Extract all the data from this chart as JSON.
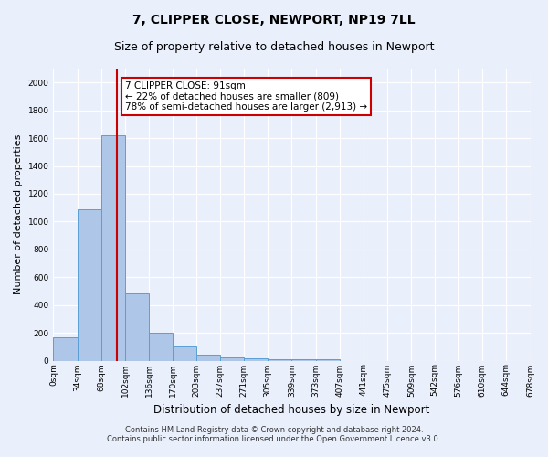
{
  "title": "7, CLIPPER CLOSE, NEWPORT, NP19 7LL",
  "subtitle": "Size of property relative to detached houses in Newport",
  "xlabel": "Distribution of detached houses by size in Newport",
  "ylabel": "Number of detached properties",
  "bin_edges": [
    0,
    34,
    68,
    102,
    136,
    170,
    203,
    237,
    271,
    305,
    339,
    373,
    407,
    441,
    475,
    509,
    542,
    576,
    610,
    644,
    678
  ],
  "bar_heights": [
    165,
    1090,
    1620,
    480,
    200,
    100,
    40,
    25,
    15,
    10,
    10,
    10,
    0,
    0,
    0,
    0,
    0,
    0,
    0,
    0
  ],
  "bar_color": "#aec6e8",
  "bar_edge_color": "#5a9fd4",
  "property_line_x": 91,
  "property_line_color": "#cc0000",
  "annotation_text": "7 CLIPPER CLOSE: 91sqm\n← 22% of detached houses are smaller (809)\n78% of semi-detached houses are larger (2,913) →",
  "annotation_box_color": "#ffffff",
  "annotation_box_edge": "#cc0000",
  "ylim": [
    0,
    2100
  ],
  "yticks": [
    0,
    200,
    400,
    600,
    800,
    1000,
    1200,
    1400,
    1600,
    1800,
    2000
  ],
  "footnote1": "Contains HM Land Registry data © Crown copyright and database right 2024.",
  "footnote2": "Contains public sector information licensed under the Open Government Licence v3.0.",
  "bg_color": "#eaf0fb",
  "grid_color": "#ffffff",
  "title_fontsize": 10,
  "subtitle_fontsize": 9,
  "tick_fontsize": 6.5,
  "ylabel_fontsize": 8,
  "xlabel_fontsize": 8.5,
  "annotation_fontsize": 7.5,
  "footnote_fontsize": 6
}
